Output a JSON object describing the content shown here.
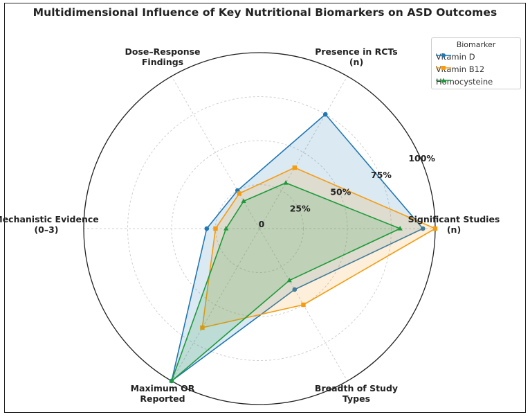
{
  "chart_data": {
    "type": "radar",
    "title": "Multidimensional Influence of Key Nutritional Biomarkers on ASD Outcomes",
    "axes": [
      [
        "Significant Studies",
        "(n)"
      ],
      [
        "Presence in RCTs",
        "(n)"
      ],
      [
        "Dose–Response",
        "Findings"
      ],
      [
        "Mechanistic Evidence",
        "(0–3)"
      ],
      [
        "Maximum OR",
        "Reported"
      ],
      [
        "Breadth of Study",
        "Types"
      ]
    ],
    "radial_ticks": [
      {
        "value": 0,
        "label": "0"
      },
      {
        "value": 25,
        "label": "25%"
      },
      {
        "value": 50,
        "label": "50%"
      },
      {
        "value": 75,
        "label": "75%"
      },
      {
        "value": 100,
        "label": "100%"
      }
    ],
    "rlim": [
      0,
      100
    ],
    "legend": {
      "title": "Biomarker",
      "position": "top-right"
    },
    "series": [
      {
        "name": "Vitamin D",
        "color": "#1f77b4",
        "marker": "circle",
        "values": [
          93,
          75,
          25,
          30,
          100,
          40
        ]
      },
      {
        "name": "Vitamin B12",
        "color": "#f59c12",
        "marker": "square",
        "values": [
          100,
          40,
          23,
          25,
          65,
          50
        ]
      },
      {
        "name": "Homocysteine",
        "color": "#1d9a3a",
        "marker": "triangle",
        "values": [
          80,
          30,
          18,
          19,
          100,
          34
        ]
      }
    ]
  }
}
